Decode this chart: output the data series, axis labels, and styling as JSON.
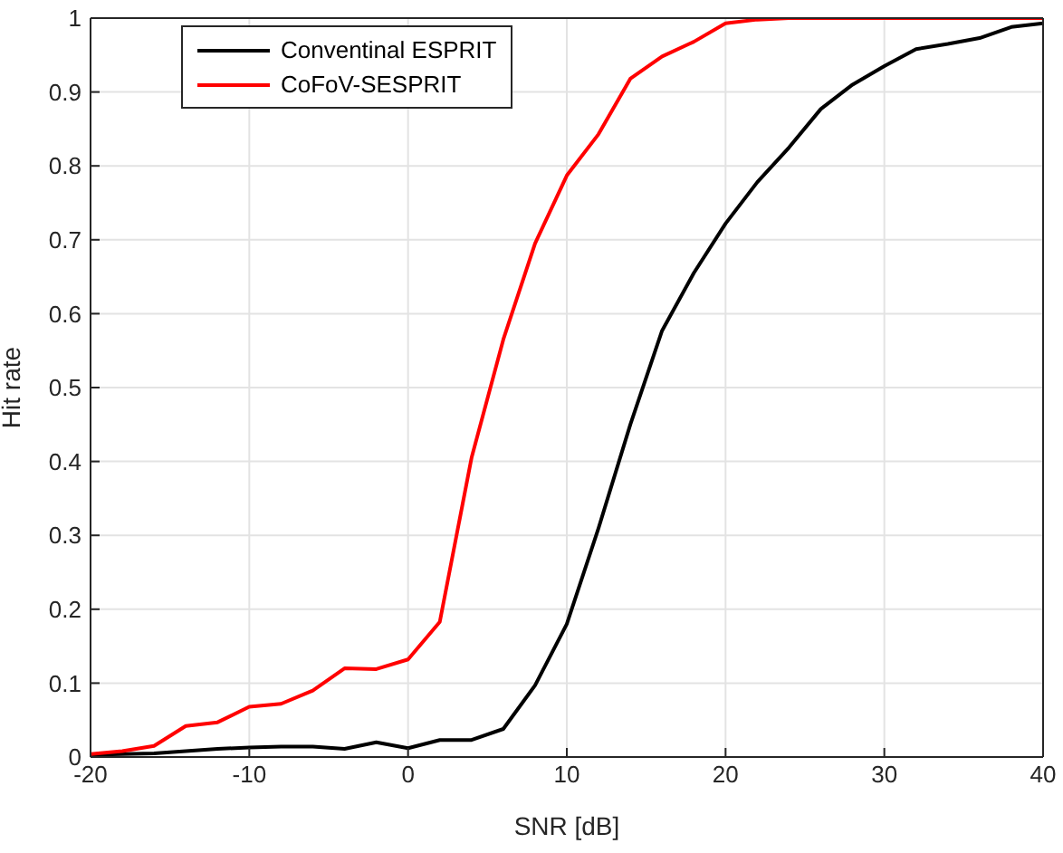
{
  "chart_data": {
    "type": "line",
    "xlabel": "SNR [dB]",
    "ylabel": "Hit rate",
    "x": [
      -20,
      -18,
      -16,
      -14,
      -12,
      -10,
      -8,
      -6,
      -4,
      -2,
      0,
      2,
      4,
      6,
      8,
      10,
      12,
      14,
      16,
      18,
      20,
      22,
      24,
      26,
      28,
      30,
      32,
      34,
      36,
      38,
      40
    ],
    "series": [
      {
        "name": "Conventinal ESPRIT",
        "color": "#000000",
        "values": [
          0.003,
          0.004,
          0.005,
          0.008,
          0.011,
          0.013,
          0.014,
          0.014,
          0.011,
          0.02,
          0.012,
          0.023,
          0.023,
          0.038,
          0.097,
          0.18,
          0.31,
          0.45,
          0.577,
          0.655,
          0.722,
          0.778,
          0.825,
          0.877,
          0.91,
          0.935,
          0.958,
          0.965,
          0.973,
          0.988,
          0.993
        ]
      },
      {
        "name": "CoFoV-SESPRIT",
        "color": "#ff0000",
        "values": [
          0.004,
          0.008,
          0.015,
          0.042,
          0.047,
          0.068,
          0.072,
          0.09,
          0.12,
          0.119,
          0.132,
          0.183,
          0.405,
          0.565,
          0.695,
          0.787,
          0.843,
          0.918,
          0.948,
          0.968,
          0.993,
          0.998,
          1,
          1,
          1,
          1,
          1,
          1,
          1,
          1,
          1
        ]
      }
    ],
    "xlim": [
      -20,
      40
    ],
    "xticks": [
      -20,
      -10,
      0,
      10,
      20,
      30,
      40
    ],
    "ylim": [
      0,
      1
    ],
    "yticks": [
      0,
      0.1,
      0.2,
      0.3,
      0.4,
      0.5,
      0.6,
      0.7,
      0.8,
      0.9,
      1
    ],
    "grid": true,
    "legend": "top left",
    "marker": "none",
    "line_style": "solid"
  }
}
